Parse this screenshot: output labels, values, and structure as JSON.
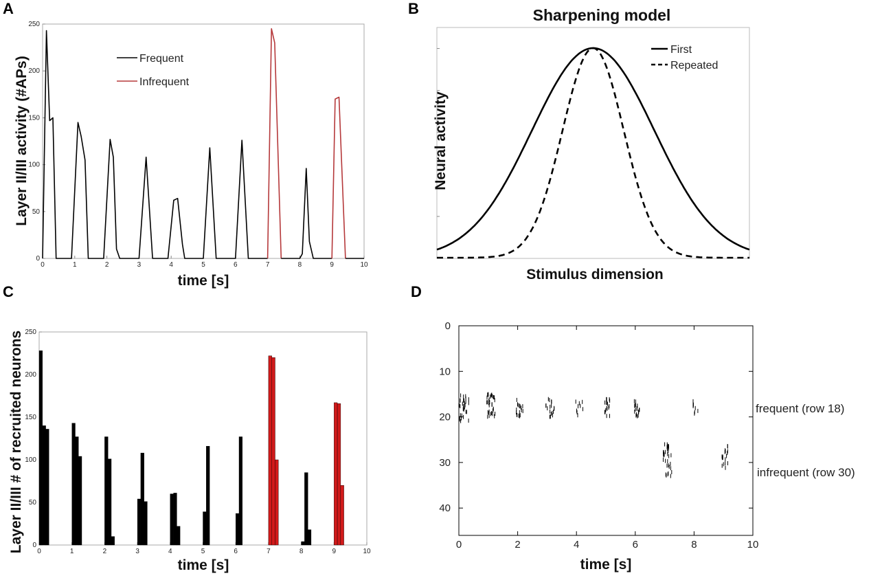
{
  "panels": {
    "A": "A",
    "B": "B",
    "C": "C",
    "D": "D"
  },
  "colors": {
    "frequent": "#000000",
    "infrequent": "#b5383a",
    "infrequent_bar": "#d11a1a"
  },
  "chart_data": [
    {
      "id": "A",
      "type": "line",
      "title": "",
      "xlabel": "time [s]",
      "ylabel": "Layer II/III activity (#APs)",
      "xlim": [
        0,
        10
      ],
      "ylim": [
        0,
        250
      ],
      "xticks": [
        0,
        1,
        2,
        3,
        4,
        5,
        6,
        7,
        8,
        9,
        10
      ],
      "yticks": [
        0,
        50,
        100,
        150,
        200,
        250
      ],
      "legend": [
        "Frequent",
        "Infrequent"
      ],
      "series": [
        {
          "name": "Frequent",
          "points": [
            [
              0,
              0
            ],
            [
              0.12,
              243
            ],
            [
              0.22,
              147
            ],
            [
              0.32,
              150
            ],
            [
              0.42,
              0
            ],
            [
              0.9,
              0
            ],
            [
              1.1,
              145
            ],
            [
              1.2,
              130
            ],
            [
              1.32,
              105
            ],
            [
              1.42,
              0
            ],
            [
              1.9,
              0
            ],
            [
              2.1,
              127
            ],
            [
              2.2,
              108
            ],
            [
              2.3,
              10
            ],
            [
              2.4,
              0
            ],
            [
              3.0,
              0
            ],
            [
              3.22,
              108
            ],
            [
              3.42,
              0
            ],
            [
              3.9,
              0
            ],
            [
              4.08,
              62
            ],
            [
              4.2,
              64
            ],
            [
              4.35,
              15
            ],
            [
              4.42,
              0
            ],
            [
              5.0,
              0
            ],
            [
              5.2,
              118
            ],
            [
              5.4,
              0
            ],
            [
              6.0,
              0
            ],
            [
              6.2,
              126
            ],
            [
              6.4,
              0
            ],
            [
              7.0,
              0
            ]
          ]
        },
        {
          "name": "Infrequent",
          "points": [
            [
              7.0,
              0
            ],
            [
              7.12,
              245
            ],
            [
              7.22,
              230
            ],
            [
              7.42,
              0
            ]
          ]
        },
        {
          "name": "Frequent",
          "points": [
            [
              7.42,
              0
            ],
            [
              8.0,
              0
            ],
            [
              8.08,
              5
            ],
            [
              8.2,
              96
            ],
            [
              8.3,
              18
            ],
            [
              8.42,
              0
            ],
            [
              9.0,
              0
            ]
          ]
        },
        {
          "name": "Infrequent",
          "points": [
            [
              9.0,
              0
            ],
            [
              9.1,
              170
            ],
            [
              9.22,
              172
            ],
            [
              9.42,
              0
            ]
          ]
        },
        {
          "name": "Frequent",
          "points": [
            [
              9.42,
              0
            ],
            [
              10,
              0
            ]
          ]
        }
      ]
    },
    {
      "id": "B",
      "type": "line",
      "title": "Sharpening model",
      "xlabel": "Stimulus dimension",
      "ylabel": "Neural activity",
      "legend": [
        "First",
        "Repeated"
      ],
      "series": [
        {
          "name": "First",
          "style": "solid",
          "center": 0,
          "sigma": 1,
          "amplitude": 1
        },
        {
          "name": "Repeated",
          "style": "dashed",
          "center": 0,
          "sigma": 0.5,
          "amplitude": 1
        }
      ]
    },
    {
      "id": "C",
      "type": "bar",
      "xlabel": "time [s]",
      "ylabel": "Layer II/III  # of recruited neurons",
      "xlim": [
        0,
        10
      ],
      "ylim": [
        0,
        250
      ],
      "xticks": [
        0,
        1,
        2,
        3,
        4,
        5,
        6,
        7,
        8,
        9,
        10
      ],
      "yticks": [
        0,
        50,
        100,
        150,
        200,
        250
      ],
      "bars": [
        {
          "x": 0.05,
          "value": 228,
          "group": "Frequent"
        },
        {
          "x": 0.15,
          "value": 140,
          "group": "Frequent"
        },
        {
          "x": 0.25,
          "value": 136,
          "group": "Frequent"
        },
        {
          "x": 1.05,
          "value": 143,
          "group": "Frequent"
        },
        {
          "x": 1.15,
          "value": 127,
          "group": "Frequent"
        },
        {
          "x": 1.25,
          "value": 104,
          "group": "Frequent"
        },
        {
          "x": 2.05,
          "value": 127,
          "group": "Frequent"
        },
        {
          "x": 2.15,
          "value": 101,
          "group": "Frequent"
        },
        {
          "x": 2.25,
          "value": 10,
          "group": "Frequent"
        },
        {
          "x": 3.05,
          "value": 54,
          "group": "Frequent"
        },
        {
          "x": 3.15,
          "value": 108,
          "group": "Frequent"
        },
        {
          "x": 3.25,
          "value": 51,
          "group": "Frequent"
        },
        {
          "x": 4.05,
          "value": 60,
          "group": "Frequent"
        },
        {
          "x": 4.15,
          "value": 61,
          "group": "Frequent"
        },
        {
          "x": 4.25,
          "value": 22,
          "group": "Frequent"
        },
        {
          "x": 5.05,
          "value": 39,
          "group": "Frequent"
        },
        {
          "x": 5.15,
          "value": 116,
          "group": "Frequent"
        },
        {
          "x": 6.05,
          "value": 37,
          "group": "Frequent"
        },
        {
          "x": 6.15,
          "value": 127,
          "group": "Frequent"
        },
        {
          "x": 7.05,
          "value": 222,
          "group": "Infrequent"
        },
        {
          "x": 7.15,
          "value": 220,
          "group": "Infrequent"
        },
        {
          "x": 7.25,
          "value": 100,
          "group": "Infrequent"
        },
        {
          "x": 8.05,
          "value": 4,
          "group": "Frequent"
        },
        {
          "x": 8.15,
          "value": 85,
          "group": "Frequent"
        },
        {
          "x": 8.25,
          "value": 18,
          "group": "Frequent"
        },
        {
          "x": 9.05,
          "value": 167,
          "group": "Infrequent"
        },
        {
          "x": 9.15,
          "value": 166,
          "group": "Infrequent"
        },
        {
          "x": 9.25,
          "value": 70,
          "group": "Infrequent"
        }
      ]
    },
    {
      "id": "D",
      "type": "scatter",
      "xlabel": "time [s]",
      "xlim": [
        0,
        10
      ],
      "ylim": [
        0,
        46
      ],
      "xticks": [
        0,
        2,
        4,
        6,
        8,
        10
      ],
      "yticks": [
        0,
        10,
        20,
        30,
        40
      ],
      "row_labels": [
        "frequent (row 18)",
        "infrequent (row 30)"
      ],
      "clusters": [
        {
          "t": 0.0,
          "dur": 0.35,
          "row_min": 15,
          "row_max": 21,
          "density": "high"
        },
        {
          "t": 0.95,
          "dur": 0.3,
          "row_min": 15,
          "row_max": 20,
          "density": "high"
        },
        {
          "t": 1.95,
          "dur": 0.25,
          "row_min": 16,
          "row_max": 20,
          "density": "medium"
        },
        {
          "t": 2.95,
          "dur": 0.3,
          "row_min": 16,
          "row_max": 20,
          "density": "medium"
        },
        {
          "t": 3.95,
          "dur": 0.3,
          "row_min": 16,
          "row_max": 20,
          "density": "low"
        },
        {
          "t": 4.95,
          "dur": 0.2,
          "row_min": 16,
          "row_max": 20,
          "density": "medium"
        },
        {
          "t": 5.95,
          "dur": 0.2,
          "row_min": 16,
          "row_max": 20,
          "density": "medium"
        },
        {
          "t": 6.95,
          "dur": 0.3,
          "row_min": 26,
          "row_max": 33,
          "density": "high"
        },
        {
          "t": 7.95,
          "dur": 0.2,
          "row_min": 16,
          "row_max": 20,
          "density": "low"
        },
        {
          "t": 8.95,
          "dur": 0.25,
          "row_min": 26,
          "row_max": 32,
          "density": "medium"
        }
      ]
    }
  ]
}
